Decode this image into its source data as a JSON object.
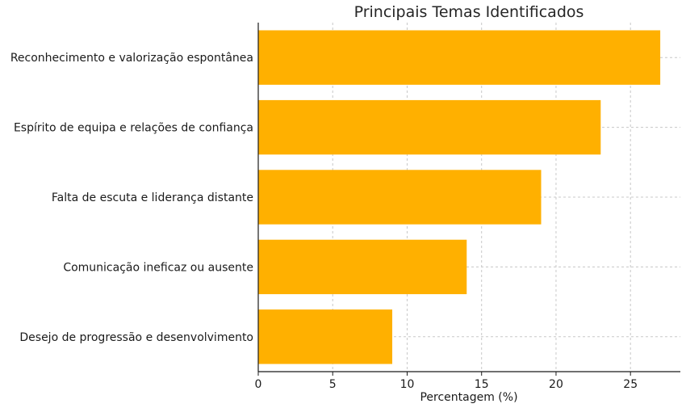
{
  "chart_data": {
    "type": "bar",
    "orientation": "horizontal",
    "title": "Principais Temas Identificados",
    "xlabel": "Percentagem (%)",
    "ylabel": "",
    "categories": [
      "Reconhecimento e valorização espontânea",
      "Espírito de equipa e relações de confiança",
      "Falta de escuta e liderança distante",
      "Comunicação ineficaz ou ausente",
      "Desejo de progressão e desenvolvimento"
    ],
    "values": [
      27,
      23,
      19,
      14,
      9
    ],
    "xlim": [
      0,
      28.35
    ],
    "xticks": [
      "0",
      "5",
      "10",
      "15",
      "20",
      "25"
    ],
    "grid": true,
    "bar_color": "#FFB000"
  }
}
